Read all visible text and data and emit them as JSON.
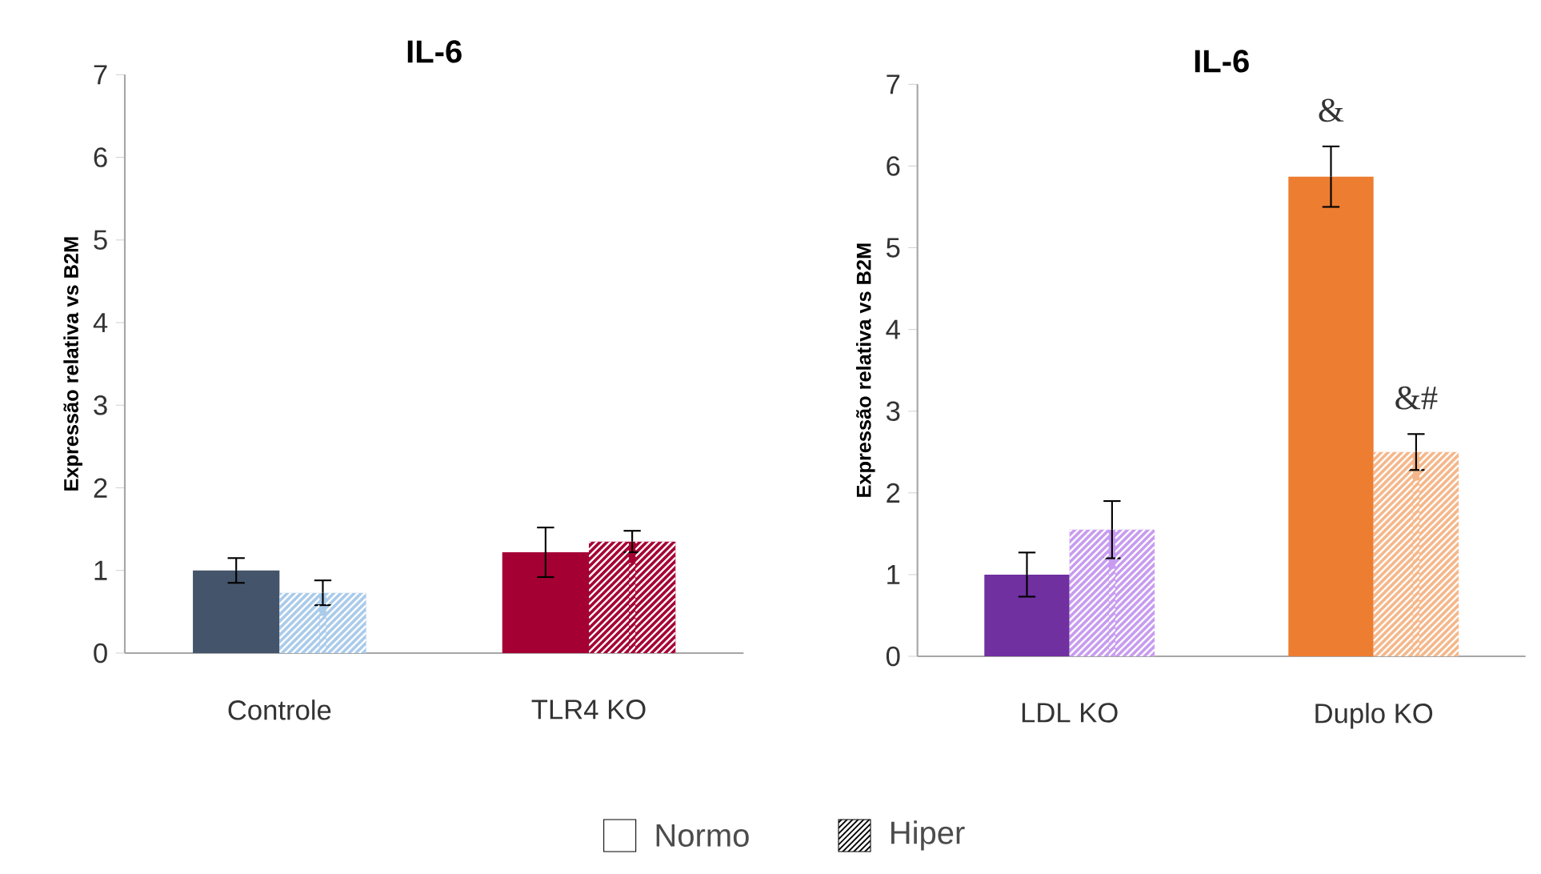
{
  "chart_data": [
    {
      "type": "bar",
      "title": "IL-6",
      "ylabel": "Expressão relativa vs B2M",
      "categories": [
        "Controle",
        "TLR4 KO"
      ],
      "ylim": [
        0,
        7
      ],
      "yticks": [
        0,
        1,
        2,
        3,
        4,
        5,
        6,
        7
      ],
      "legend": "bottom",
      "series": [
        {
          "name": "Normo",
          "color": "#ffffff",
          "colors": [
            "#44546a",
            "#a50034"
          ],
          "values": [
            1.0,
            1.22
          ],
          "errors": [
            0.15,
            0.3
          ]
        },
        {
          "name": "Hiper",
          "color": "#000000",
          "colors": [
            "#aacbea",
            "#a50034"
          ],
          "values": [
            0.73,
            1.35
          ],
          "errors": [
            0.15,
            0.13
          ]
        }
      ]
    },
    {
      "type": "bar",
      "title": "IL-6",
      "ylabel": "Expressão relativa vs B2M",
      "categories": [
        "LDL KO",
        "Duplo KO"
      ],
      "ylim": [
        0,
        7
      ],
      "yticks": [
        0,
        1,
        2,
        3,
        4,
        5,
        6,
        7
      ],
      "series": [
        {
          "colors": [
            "#7030a0",
            "#ed7d31"
          ],
          "values": [
            1.0,
            5.87
          ],
          "errors": [
            0.27,
            0.37
          ]
        },
        {
          "colors": [
            "#c79cf0",
            "#f5b78a"
          ],
          "values": [
            1.55,
            2.5
          ],
          "errors": [
            0.35,
            0.22
          ]
        }
      ],
      "annotations": [
        "&",
        {
          "text": "&#",
          "x": "Duplo KO",
          "y": 2.72
        }
      ]
    }
  ]
}
